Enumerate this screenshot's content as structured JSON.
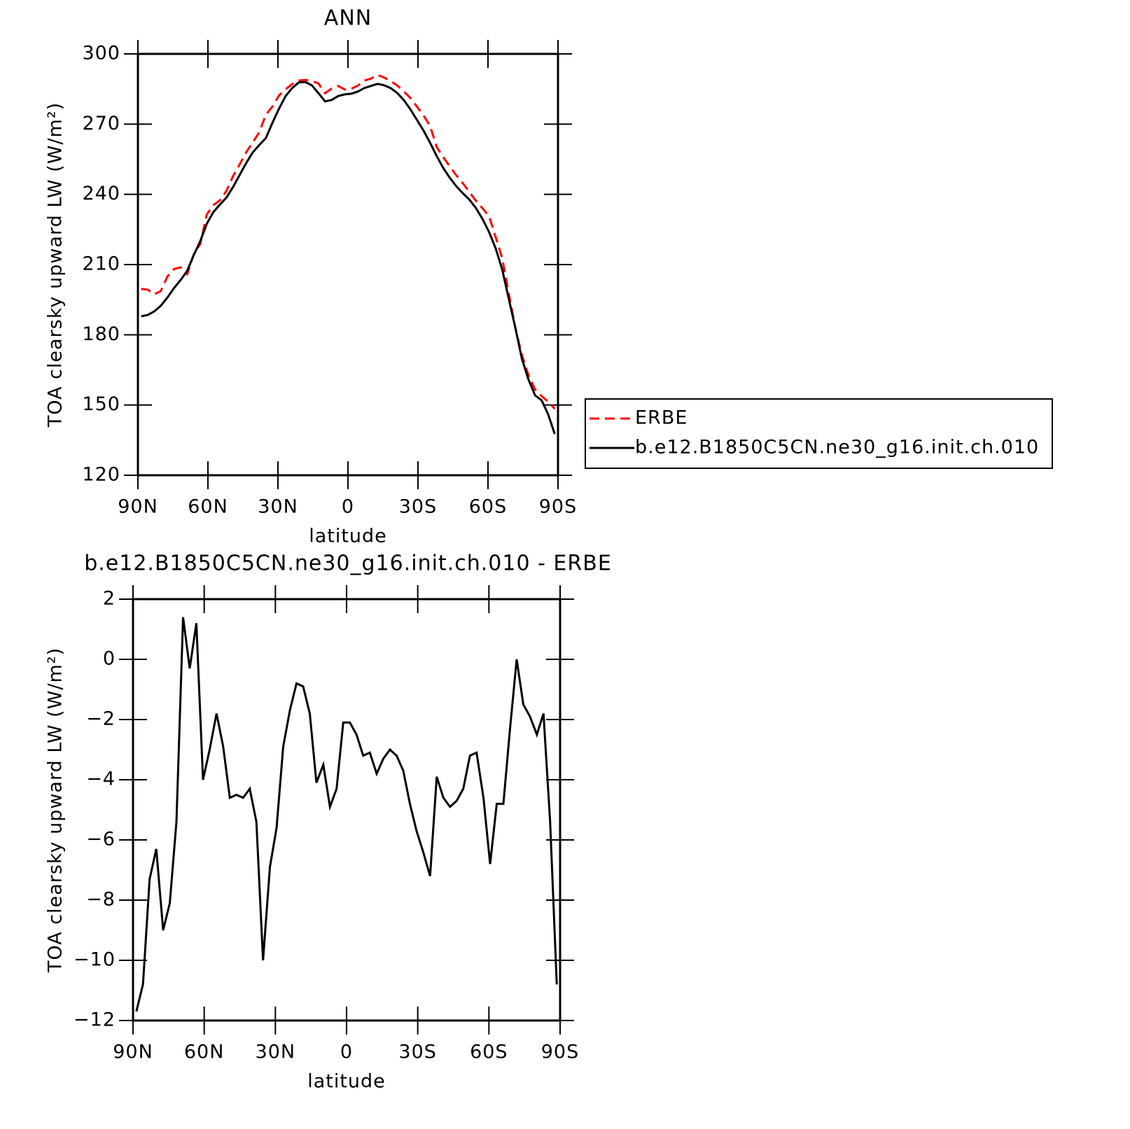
{
  "chart_data": [
    {
      "type": "line",
      "title": "ANN",
      "xlabel": "latitude",
      "ylabel": "TOA clearsky upward LW (W/m²)",
      "x": [
        88.6,
        85.8,
        83.0,
        80.2,
        77.3,
        74.5,
        71.7,
        68.9,
        66.1,
        63.3,
        60.5,
        57.7,
        54.8,
        52.0,
        49.2,
        46.4,
        43.6,
        40.8,
        38.0,
        35.2,
        32.3,
        29.5,
        26.7,
        23.9,
        21.1,
        18.3,
        15.5,
        12.7,
        9.8,
        7.0,
        4.2,
        1.4,
        -1.4,
        -4.2,
        -7.0,
        -9.8,
        -12.7,
        -15.5,
        -18.3,
        -21.1,
        -23.9,
        -26.7,
        -29.5,
        -32.3,
        -35.2,
        -38.0,
        -40.8,
        -43.6,
        -46.4,
        -49.2,
        -52.0,
        -54.8,
        -57.7,
        -60.5,
        -63.3,
        -66.1,
        -68.9,
        -71.7,
        -74.5,
        -77.3,
        -80.2,
        -83.0,
        -85.8,
        -88.6
      ],
      "series": [
        {
          "name": "ERBE",
          "color": "#ff0000",
          "dashed": true,
          "values": [
            199.6,
            199.3,
            197.3,
            198.7,
            205,
            208.1,
            208.8,
            205.9,
            214.3,
            218.8,
            231.4,
            235.4,
            237.5,
            241.6,
            247.8,
            252.8,
            258,
            262.2,
            266.5,
            274,
            277.6,
            282.3,
            284.9,
            287.1,
            288.6,
            288.9,
            288.4,
            287.4,
            283.2,
            285.2,
            286.3,
            284.8,
            285.1,
            286.4,
            288.6,
            289.4,
            291,
            289.9,
            288.4,
            286.5,
            284,
            281.2,
            277.6,
            273.8,
            269.2,
            260.3,
            255.9,
            252,
            248.2,
            244.8,
            241,
            237.3,
            234,
            230.6,
            221.7,
            212.7,
            197.7,
            183.1,
            171.4,
            162.9,
            156.6,
            153.8,
            151.4,
            148.4
          ]
        },
        {
          "name": "b.e12.B1850C5CN.ne30_g16.init.ch.010",
          "color": "#000000",
          "dashed": false,
          "values": [
            187.9,
            188.5,
            190,
            192.4,
            196,
            200,
            203.4,
            207.3,
            214,
            220,
            227.4,
            232.4,
            235.7,
            238.7,
            243.2,
            248.3,
            253.4,
            257.9,
            261.1,
            264,
            270.7,
            276.7,
            282,
            285.4,
            287.8,
            288,
            286.6,
            283.3,
            279.7,
            280.3,
            282,
            282.7,
            283,
            283.9,
            285.4,
            286.3,
            287.2,
            286.6,
            285.4,
            283.3,
            280.3,
            276.4,
            271.9,
            267.4,
            262,
            256.4,
            251.3,
            247.1,
            243.5,
            240.5,
            237.8,
            234.2,
            229.4,
            223.8,
            216.9,
            207.9,
            195.4,
            183.1,
            169.9,
            161,
            154.1,
            152,
            146,
            137.6
          ]
        }
      ],
      "xlim": [
        90,
        -90
      ],
      "xticks": [
        {
          "value": 90,
          "label": "90N"
        },
        {
          "value": 60,
          "label": "60N"
        },
        {
          "value": 30,
          "label": "30N"
        },
        0,
        {
          "value": -30,
          "label": "30S"
        },
        {
          "value": -60,
          "label": "60S"
        },
        {
          "value": -90,
          "label": "90S"
        }
      ],
      "ylim": [
        120,
        300
      ],
      "yticks": [
        120,
        150,
        180,
        210,
        240,
        270,
        300
      ],
      "legend": "right"
    },
    {
      "type": "line",
      "title": "b.e12.B1850C5CN.ne30_g16.init.ch.010 - ERBE",
      "xlabel": "latitude",
      "ylabel": "TOA clearsky upward LW (W/m²)",
      "x": [
        88.6,
        85.8,
        83.0,
        80.2,
        77.3,
        74.5,
        71.7,
        68.9,
        66.1,
        63.3,
        60.5,
        57.7,
        54.8,
        52.0,
        49.2,
        46.4,
        43.6,
        40.8,
        38.0,
        35.2,
        32.3,
        29.5,
        26.7,
        23.9,
        21.1,
        18.3,
        15.5,
        12.7,
        9.8,
        7.0,
        4.2,
        1.4,
        -1.4,
        -4.2,
        -7.0,
        -9.8,
        -12.7,
        -15.5,
        -18.3,
        -21.1,
        -23.9,
        -26.7,
        -29.5,
        -32.3,
        -35.2,
        -38.0,
        -40.8,
        -43.6,
        -46.4,
        -49.2,
        -52.0,
        -54.8,
        -57.7,
        -60.5,
        -63.3,
        -66.1,
        -68.9,
        -71.7,
        -74.5,
        -77.3,
        -80.2,
        -83.0,
        -85.8,
        -88.6
      ],
      "color": "#000000",
      "values": [
        -11.7,
        -10.8,
        -7.3,
        -6.3,
        -9.0,
        -8.1,
        -5.4,
        1.4,
        -0.3,
        1.2,
        -4.0,
        -3.0,
        -1.8,
        -2.9,
        -4.6,
        -4.5,
        -4.6,
        -4.3,
        -5.4,
        -10.0,
        -6.9,
        -5.6,
        -2.9,
        -1.7,
        -0.8,
        -0.9,
        -1.8,
        -4.1,
        -3.5,
        -4.9,
        -4.3,
        -2.1,
        -2.1,
        -2.5,
        -3.2,
        -3.1,
        -3.8,
        -3.3,
        -3.0,
        -3.2,
        -3.7,
        -4.8,
        -5.7,
        -6.4,
        -7.2,
        -3.9,
        -4.6,
        -4.9,
        -4.7,
        -4.3,
        -3.2,
        -3.1,
        -4.6,
        -6.8,
        -4.8,
        -4.8,
        -2.3,
        0.0,
        -1.5,
        -1.9,
        -2.5,
        -1.8,
        -5.4,
        -10.8
      ],
      "xlim": [
        90,
        -90
      ],
      "xticks": [
        {
          "value": 90,
          "label": "90N"
        },
        {
          "value": 60,
          "label": "60N"
        },
        {
          "value": 30,
          "label": "30N"
        },
        0,
        {
          "value": -30,
          "label": "30S"
        },
        {
          "value": -60,
          "label": "60S"
        },
        {
          "value": -90,
          "label": "90S"
        }
      ],
      "ylim": [
        -12,
        2
      ],
      "yticks": [
        {
          "value": -12,
          "label": "−12"
        },
        {
          "value": -10,
          "label": "−10"
        },
        {
          "value": -8,
          "label": "−8"
        },
        {
          "value": -6,
          "label": "−6"
        },
        {
          "value": -4,
          "label": "−4"
        },
        {
          "value": -2,
          "label": "−2"
        },
        0,
        2
      ]
    }
  ]
}
